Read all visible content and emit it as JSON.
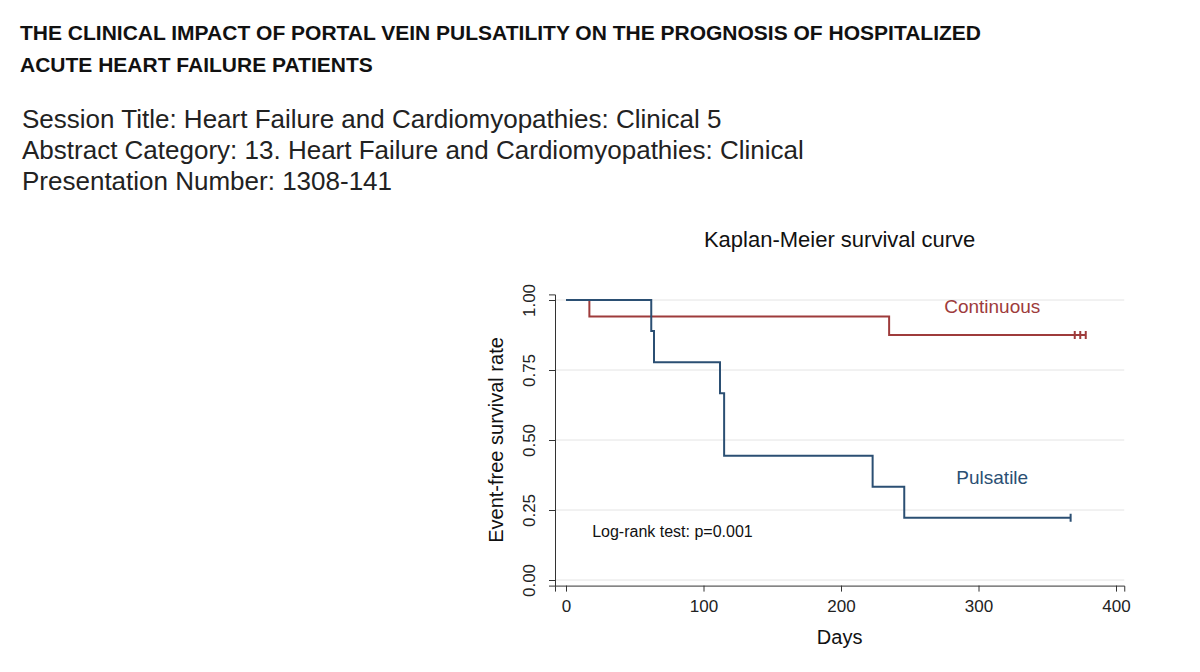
{
  "header": {
    "title": [
      "THE CLINICAL IMPACT OF PORTAL VEIN PULSATILITY ON THE PROGNOSIS OF HOSPITALIZED",
      "ACUTE HEART FAILURE PATIENTS"
    ],
    "lines": [
      "Session Title: Heart Failure and Cardiomyopathies: Clinical 5",
      "Abstract Category: 13. Heart Failure and Cardiomyopathies: Clinical",
      "Presentation Number: 1308-141"
    ]
  },
  "chart_data": {
    "type": "step",
    "title": "Kaplan-Meier survival curve",
    "x_label": "Days",
    "y_label": "Event-free survival rate",
    "annotation": "Log-rank test: p=0.001",
    "series": [
      {
        "name": "Continuous",
        "color": "#9e3b3b",
        "x": [
          0,
          17,
          235,
          378
        ],
        "values": [
          1.0,
          0.941,
          0.875,
          0.875
        ],
        "censored": [
          370,
          374,
          378
        ]
      },
      {
        "name": "Pulsatile",
        "color": "#2b4f73",
        "x": [
          0,
          62,
          64,
          112,
          115,
          223,
          246,
          367
        ],
        "values": [
          1.0,
          0.889,
          0.778,
          0.667,
          0.444,
          0.333,
          0.222,
          0.222
        ],
        "censored": [
          367
        ]
      }
    ],
    "xlim": [
      -8,
      406
    ],
    "xticks": [
      0,
      100,
      200,
      300,
      400
    ],
    "ylim": [
      -0.02,
      1.02
    ],
    "yticks": [
      {
        "value": 0,
        "label": "0.00"
      },
      {
        "value": 0.25,
        "label": "0.25"
      },
      {
        "value": 0.5,
        "label": "0.50"
      },
      {
        "value": 0.75,
        "label": "0.75"
      },
      {
        "value": 1,
        "label": "1.00"
      }
    ],
    "grid": true
  }
}
